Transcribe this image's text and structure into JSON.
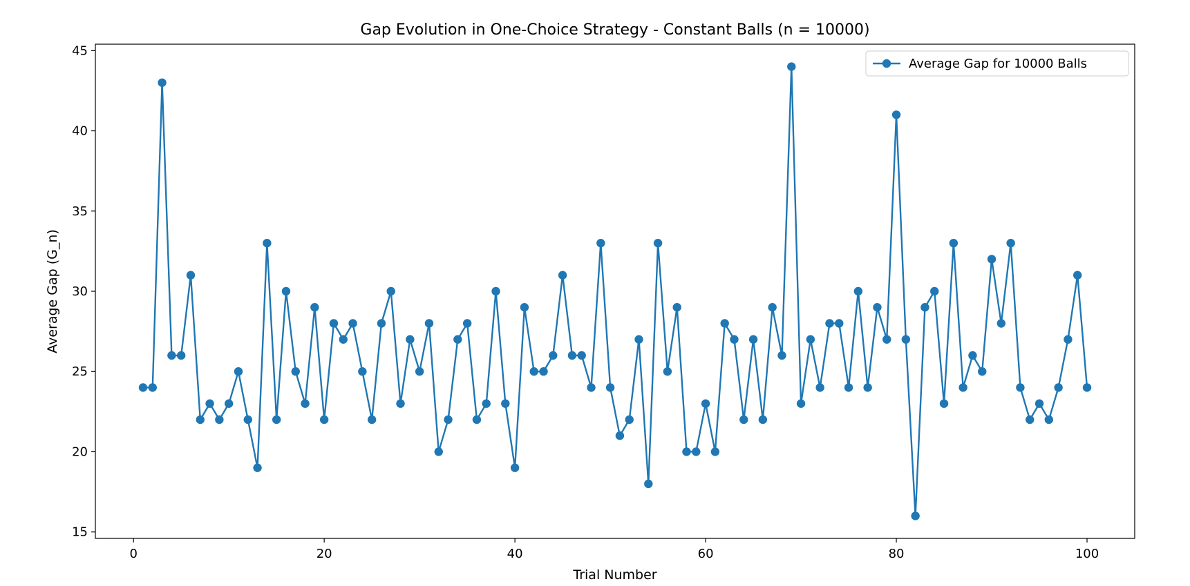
{
  "chart_data": {
    "type": "line",
    "title": "Gap Evolution in One-Choice Strategy - Constant Balls (n = 10000)",
    "xlabel": "Trial Number",
    "ylabel": "Average Gap (G_n)",
    "xlim": [
      -4,
      105
    ],
    "ylim": [
      14.6,
      45.4
    ],
    "xticks": [
      0,
      20,
      40,
      60,
      80,
      100
    ],
    "yticks": [
      15,
      20,
      25,
      30,
      35,
      40,
      45
    ],
    "grid": false,
    "legend_position": "top-right",
    "series": [
      {
        "name": "Average Gap for 10000 Balls",
        "color": "#1f77b4",
        "marker": "circle",
        "x": [
          1,
          2,
          3,
          4,
          5,
          6,
          7,
          8,
          9,
          10,
          11,
          12,
          13,
          14,
          15,
          16,
          17,
          18,
          19,
          20,
          21,
          22,
          23,
          24,
          25,
          26,
          27,
          28,
          29,
          30,
          31,
          32,
          33,
          34,
          35,
          36,
          37,
          38,
          39,
          40,
          41,
          42,
          43,
          44,
          45,
          46,
          47,
          48,
          49,
          50,
          51,
          52,
          53,
          54,
          55,
          56,
          57,
          58,
          59,
          60,
          61,
          62,
          63,
          64,
          65,
          66,
          67,
          68,
          69,
          70,
          71,
          72,
          73,
          74,
          75,
          76,
          77,
          78,
          79,
          80,
          81,
          82,
          83,
          84,
          85,
          86,
          87,
          88,
          89,
          90,
          91,
          92,
          93,
          94,
          95,
          96,
          97,
          98,
          99,
          100
        ],
        "values": [
          24,
          24,
          43,
          26,
          26,
          31,
          22,
          23,
          22,
          23,
          25,
          22,
          19,
          33,
          22,
          30,
          25,
          23,
          29,
          22,
          28,
          27,
          28,
          25,
          22,
          28,
          30,
          23,
          27,
          25,
          28,
          20,
          22,
          27,
          28,
          22,
          23,
          30,
          23,
          19,
          29,
          25,
          25,
          26,
          31,
          26,
          26,
          24,
          33,
          24,
          21,
          22,
          27,
          18,
          33,
          25,
          29,
          20,
          20,
          23,
          20,
          28,
          27,
          22,
          27,
          22,
          29,
          26,
          44,
          23,
          27,
          24,
          28,
          28,
          24,
          30,
          24,
          29,
          27,
          41,
          27,
          16,
          29,
          30,
          23,
          33,
          24,
          26,
          25,
          32,
          28,
          33,
          24,
          22,
          23,
          22,
          24,
          27,
          31,
          24
        ]
      }
    ]
  }
}
